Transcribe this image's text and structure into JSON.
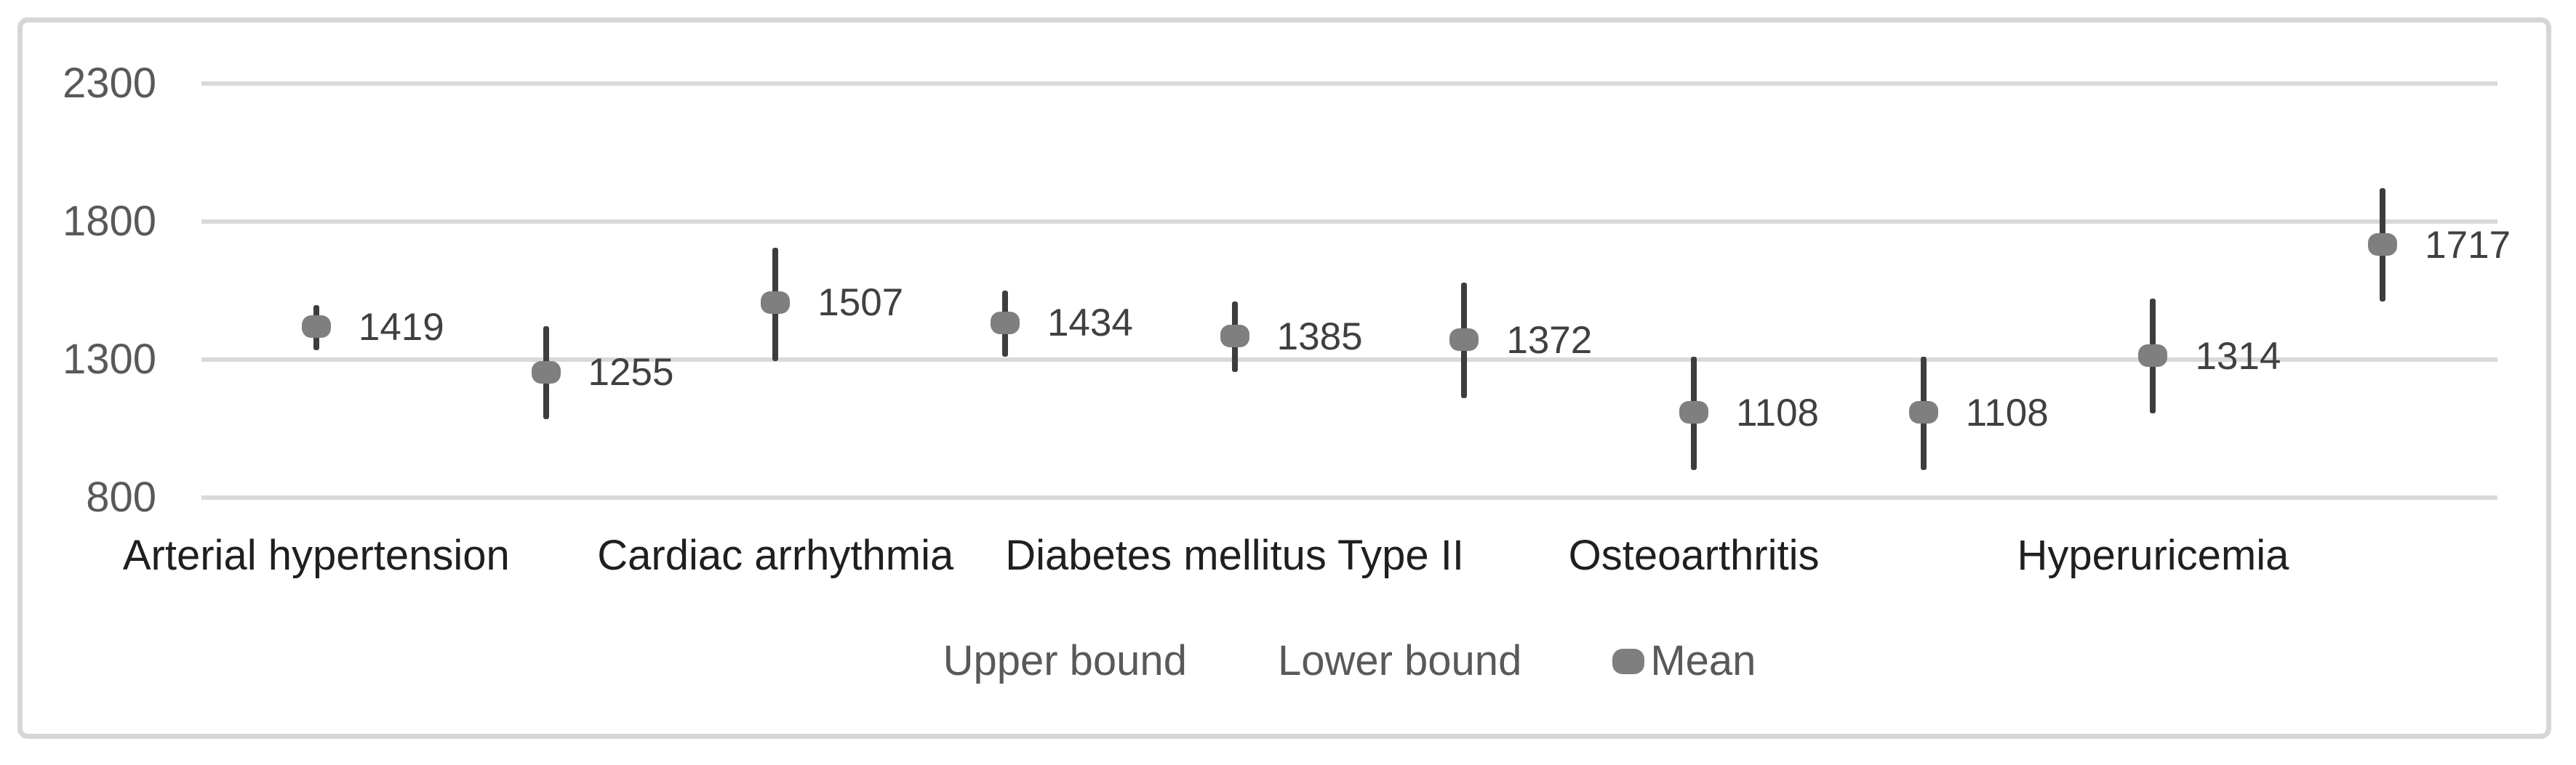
{
  "chart_data": {
    "type": "scatter",
    "title": "",
    "xlabel": "",
    "ylabel": "",
    "y_ticks": [
      2300,
      1800,
      1300,
      800
    ],
    "ylim": [
      800,
      2500
    ],
    "grid": true,
    "categories": [
      "Arterial hypertension",
      "Cardiac arrhythmia",
      "Diabetes mellitus Type II",
      "Osteoarthritis",
      "Hyperuricemia"
    ],
    "series": [
      {
        "name": "Mean",
        "values": [
          1419,
          1255,
          1507,
          1434,
          1385,
          1372,
          1108,
          1108,
          1314,
          1717
        ]
      },
      {
        "name": "Upper bound",
        "values": [
          1497,
          1420,
          1705,
          1550,
          1510,
          1580,
          1310,
          1310,
          1520,
          1920
        ]
      },
      {
        "name": "Lower bound",
        "values": [
          1334,
          1085,
          1295,
          1310,
          1255,
          1160,
          900,
          900,
          1105,
          1510
        ]
      }
    ],
    "data_labels": [
      "1419",
      "1255",
      "1507",
      "1434",
      "1385",
      "1372",
      "1108",
      "1108",
      "1314",
      "1717"
    ],
    "legend": [
      {
        "label": "Upper bound",
        "marker": "none"
      },
      {
        "label": "Lower bound",
        "marker": "none"
      },
      {
        "label": "Mean",
        "marker": "dot"
      }
    ],
    "legend_position": "bottom-center",
    "colors": {
      "frame_border": "#d6d6d6",
      "gridline": "#d9d9d9",
      "error_bar": "#3d3d3d",
      "mean_dot": "#7f7f7f",
      "axis_text": "#595959",
      "legend_text": "#595959",
      "category_text": "#1f1f1f",
      "data_label_text": "#404040"
    }
  }
}
